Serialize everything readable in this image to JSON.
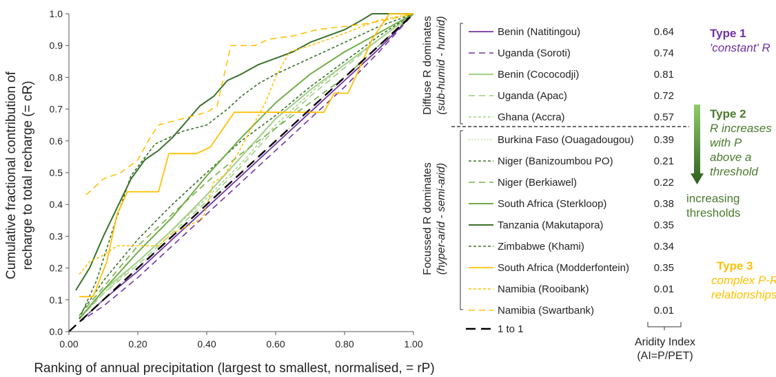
{
  "chart_data": {
    "type": "line",
    "xlabel": "Ranking of annual precipitation (largest to smallest, normalised, = rP)",
    "ylabel_line1": "Cumulative fractional contribution of",
    "ylabel_line2": "recharge to total recharge (= cR)",
    "xlim": [
      0,
      1
    ],
    "ylim": [
      0,
      1
    ],
    "xticks": [
      "0.00",
      "0.20",
      "0.40",
      "0.60",
      "0.80",
      "1.00"
    ],
    "yticks": [
      "0.0",
      "0.1",
      "0.2",
      "0.3",
      "0.4",
      "0.5",
      "0.6",
      "0.7",
      "0.8",
      "0.9",
      "1.0"
    ],
    "grid": false,
    "legend_position": "right",
    "group_labels": {
      "diffuse_main": "Diffuse R dominates",
      "diffuse_sub": "(sub-humid - humid)",
      "focussed_main": "Focussed R dominates",
      "focussed_sub": "(hyper-arid - semi-arid)"
    },
    "types": {
      "type1_title": "Type 1",
      "type1_desc": "'constant' R",
      "type2_title": "Type 2",
      "type2_desc1": "R increases",
      "type2_desc2": "with P",
      "type2_desc3": "above a",
      "type2_desc4": "threshold",
      "type2_arrow1": "increasing",
      "type2_arrow2": "thresholds",
      "type3_title": "Type 3",
      "type3_desc1": "complex P-R",
      "type3_desc2": "relationships"
    },
    "aridity_label_line1": "Aridity Index",
    "aridity_label_line2": "(AI=P/PET)",
    "colors": {
      "type1": "#7030a0",
      "type2_text": "#4a7a2c",
      "type2_light": "#a9d18e",
      "type2_mid": "#70ad47",
      "type2_dark": "#38702a",
      "type3": "#ffc000",
      "one_to_one": "#000000"
    },
    "series": [
      {
        "name": "Benin (Natitingou)",
        "ai": "0.64",
        "color": "#7030a0",
        "dash": "solid",
        "width": 1.8,
        "x": [
          0.03,
          0.1,
          0.2,
          0.3,
          0.4,
          0.5,
          0.6,
          0.7,
          0.8,
          0.9,
          1.0
        ],
        "y": [
          0.03,
          0.1,
          0.19,
          0.29,
          0.39,
          0.49,
          0.59,
          0.69,
          0.79,
          0.89,
          1.0
        ]
      },
      {
        "name": "Uganda (Soroti)",
        "ai": "0.74",
        "color": "#7030a0",
        "dash": "dash",
        "width": 1.6,
        "x": [
          0.03,
          0.1,
          0.2,
          0.3,
          0.4,
          0.5,
          0.6,
          0.7,
          0.8,
          0.9,
          1.0
        ],
        "y": [
          0.03,
          0.08,
          0.17,
          0.27,
          0.37,
          0.47,
          0.57,
          0.67,
          0.77,
          0.88,
          1.0
        ]
      },
      {
        "name": "Benin (Cococodji)",
        "ai": "0.81",
        "color": "#a9d18e",
        "dash": "solid",
        "width": 2.2,
        "x": [
          0.03,
          0.1,
          0.2,
          0.3,
          0.4,
          0.5,
          0.6,
          0.7,
          0.8,
          0.9,
          1.0
        ],
        "y": [
          0.04,
          0.13,
          0.22,
          0.32,
          0.43,
          0.55,
          0.67,
          0.76,
          0.84,
          0.92,
          1.0
        ]
      },
      {
        "name": "Uganda (Apac)",
        "ai": "0.72",
        "color": "#a9d18e",
        "dash": "dash",
        "width": 1.8,
        "x": [
          0.03,
          0.1,
          0.2,
          0.3,
          0.4,
          0.5,
          0.6,
          0.7,
          0.8,
          0.9,
          1.0
        ],
        "y": [
          0.04,
          0.12,
          0.21,
          0.31,
          0.41,
          0.52,
          0.64,
          0.74,
          0.83,
          0.92,
          1.0
        ]
      },
      {
        "name": "Ghana (Accra)",
        "ai": "0.57",
        "color": "#a9d18e",
        "dash": "shortdash",
        "width": 1.6,
        "x": [
          0.03,
          0.1,
          0.2,
          0.3,
          0.4,
          0.5,
          0.6,
          0.7,
          0.8,
          0.9,
          1.0
        ],
        "y": [
          0.04,
          0.12,
          0.22,
          0.32,
          0.42,
          0.53,
          0.65,
          0.75,
          0.84,
          0.92,
          1.0
        ]
      },
      {
        "name": "Burkina Faso (Ouagadougou)",
        "ai": "0.39",
        "color": "#a9d18e",
        "dash": "dot",
        "width": 1.6,
        "x": [
          0.03,
          0.1,
          0.2,
          0.3,
          0.4,
          0.5,
          0.6,
          0.7,
          0.8,
          0.9,
          1.0
        ],
        "y": [
          0.03,
          0.1,
          0.2,
          0.3,
          0.4,
          0.5,
          0.6,
          0.7,
          0.8,
          0.9,
          1.0
        ]
      },
      {
        "name": "Niger (Banizoumbou PO)",
        "ai": "0.21",
        "color": "#38702a",
        "dash": "shortdash",
        "width": 1.6,
        "x": [
          0.03,
          0.1,
          0.2,
          0.3,
          0.4,
          0.5,
          0.6,
          0.7,
          0.8,
          0.9,
          1.0
        ],
        "y": [
          0.05,
          0.16,
          0.29,
          0.4,
          0.5,
          0.6,
          0.68,
          0.77,
          0.85,
          0.93,
          1.0
        ]
      },
      {
        "name": "Niger (Berkiawel)",
        "ai": "0.22",
        "color": "#70ad47",
        "dash": "dash",
        "width": 1.6,
        "x": [
          0.03,
          0.1,
          0.2,
          0.3,
          0.4,
          0.5,
          0.6,
          0.7,
          0.8,
          0.9,
          1.0
        ],
        "y": [
          0.05,
          0.14,
          0.27,
          0.37,
          0.47,
          0.56,
          0.64,
          0.72,
          0.8,
          0.9,
          1.0
        ]
      },
      {
        "name": "South Africa (Sterkloop)",
        "ai": "0.38",
        "color": "#70ad47",
        "dash": "solid",
        "width": 2.0,
        "x": [
          0.03,
          0.1,
          0.2,
          0.3,
          0.4,
          0.5,
          0.6,
          0.7,
          0.8,
          0.9,
          1.0
        ],
        "y": [
          0.04,
          0.13,
          0.25,
          0.36,
          0.49,
          0.61,
          0.72,
          0.81,
          0.88,
          0.94,
          1.0
        ]
      },
      {
        "name": "Tanzania (Makutapora)",
        "ai": "0.35",
        "color": "#38702a",
        "dash": "solid",
        "width": 2.0,
        "x": [
          0.02,
          0.06,
          0.1,
          0.14,
          0.18,
          0.22,
          0.26,
          0.3,
          0.34,
          0.38,
          0.42,
          0.46,
          0.5,
          0.55,
          0.6,
          0.65,
          0.7,
          0.75,
          0.8,
          0.85,
          0.88,
          0.92,
          1.0
        ],
        "y": [
          0.13,
          0.2,
          0.3,
          0.39,
          0.48,
          0.54,
          0.57,
          0.61,
          0.66,
          0.71,
          0.74,
          0.79,
          0.81,
          0.84,
          0.86,
          0.88,
          0.91,
          0.93,
          0.95,
          0.98,
          1.0,
          1.0,
          1.0
        ]
      },
      {
        "name": "Zimbabwe (Khami)",
        "ai": "0.34",
        "color": "#38702a",
        "dash": "shortdash",
        "width": 1.6,
        "x": [
          0.03,
          0.08,
          0.13,
          0.18,
          0.25,
          0.33,
          0.4,
          0.46,
          0.5,
          0.55,
          0.6,
          0.7,
          0.8,
          0.9,
          1.0
        ],
        "y": [
          0.04,
          0.16,
          0.33,
          0.49,
          0.59,
          0.63,
          0.65,
          0.7,
          0.74,
          0.78,
          0.81,
          0.86,
          0.91,
          0.96,
          1.0
        ]
      },
      {
        "name": "South Africa (Modderfontein)",
        "ai": "0.35",
        "color": "#ffc000",
        "dash": "solid",
        "width": 1.8,
        "x": [
          0.03,
          0.07,
          0.11,
          0.14,
          0.17,
          0.2,
          0.23,
          0.26,
          0.29,
          0.33,
          0.37,
          0.41,
          0.48,
          0.55,
          0.65,
          0.7,
          0.74,
          0.77,
          0.81,
          0.84,
          0.88,
          0.93,
          1.0
        ],
        "y": [
          0.11,
          0.11,
          0.22,
          0.37,
          0.44,
          0.44,
          0.44,
          0.44,
          0.56,
          0.56,
          0.56,
          0.58,
          0.69,
          0.69,
          0.69,
          0.69,
          0.69,
          0.75,
          0.75,
          0.82,
          0.92,
          1.0,
          1.0
        ]
      },
      {
        "name": "Namibia (Rooibank)",
        "ai": "0.01",
        "color": "#ffc000",
        "dash": "shortdash",
        "width": 1.6,
        "x": [
          0.03,
          0.06,
          0.1,
          0.14,
          0.17,
          0.2,
          0.23,
          0.26,
          0.3,
          0.36,
          0.39,
          0.42,
          0.45,
          0.49,
          0.53,
          0.57,
          0.6,
          0.64,
          0.7,
          0.78,
          0.85,
          0.9,
          1.0
        ],
        "y": [
          0.18,
          0.22,
          0.24,
          0.27,
          0.27,
          0.27,
          0.27,
          0.27,
          0.31,
          0.34,
          0.36,
          0.47,
          0.49,
          0.56,
          0.64,
          0.72,
          0.8,
          0.88,
          0.9,
          0.93,
          0.96,
          0.98,
          1.0
        ]
      },
      {
        "name": "Namibia (Swartbank)",
        "ai": "0.01",
        "color": "#ffc000",
        "dash": "dash",
        "width": 1.6,
        "x": [
          0.05,
          0.1,
          0.15,
          0.2,
          0.23,
          0.26,
          0.33,
          0.4,
          0.43,
          0.47,
          0.54,
          0.58,
          0.65,
          0.72,
          0.8,
          0.87,
          0.92,
          1.0
        ],
        "y": [
          0.43,
          0.48,
          0.5,
          0.54,
          0.6,
          0.65,
          0.67,
          0.69,
          0.71,
          0.9,
          0.9,
          0.92,
          0.93,
          0.95,
          0.96,
          0.97,
          0.98,
          1.0
        ]
      },
      {
        "name": "1 to 1",
        "ai": "",
        "color": "#000000",
        "dash": "longdash",
        "width": 2.4,
        "x": [
          0,
          1
        ],
        "y": [
          0,
          1
        ]
      }
    ]
  }
}
